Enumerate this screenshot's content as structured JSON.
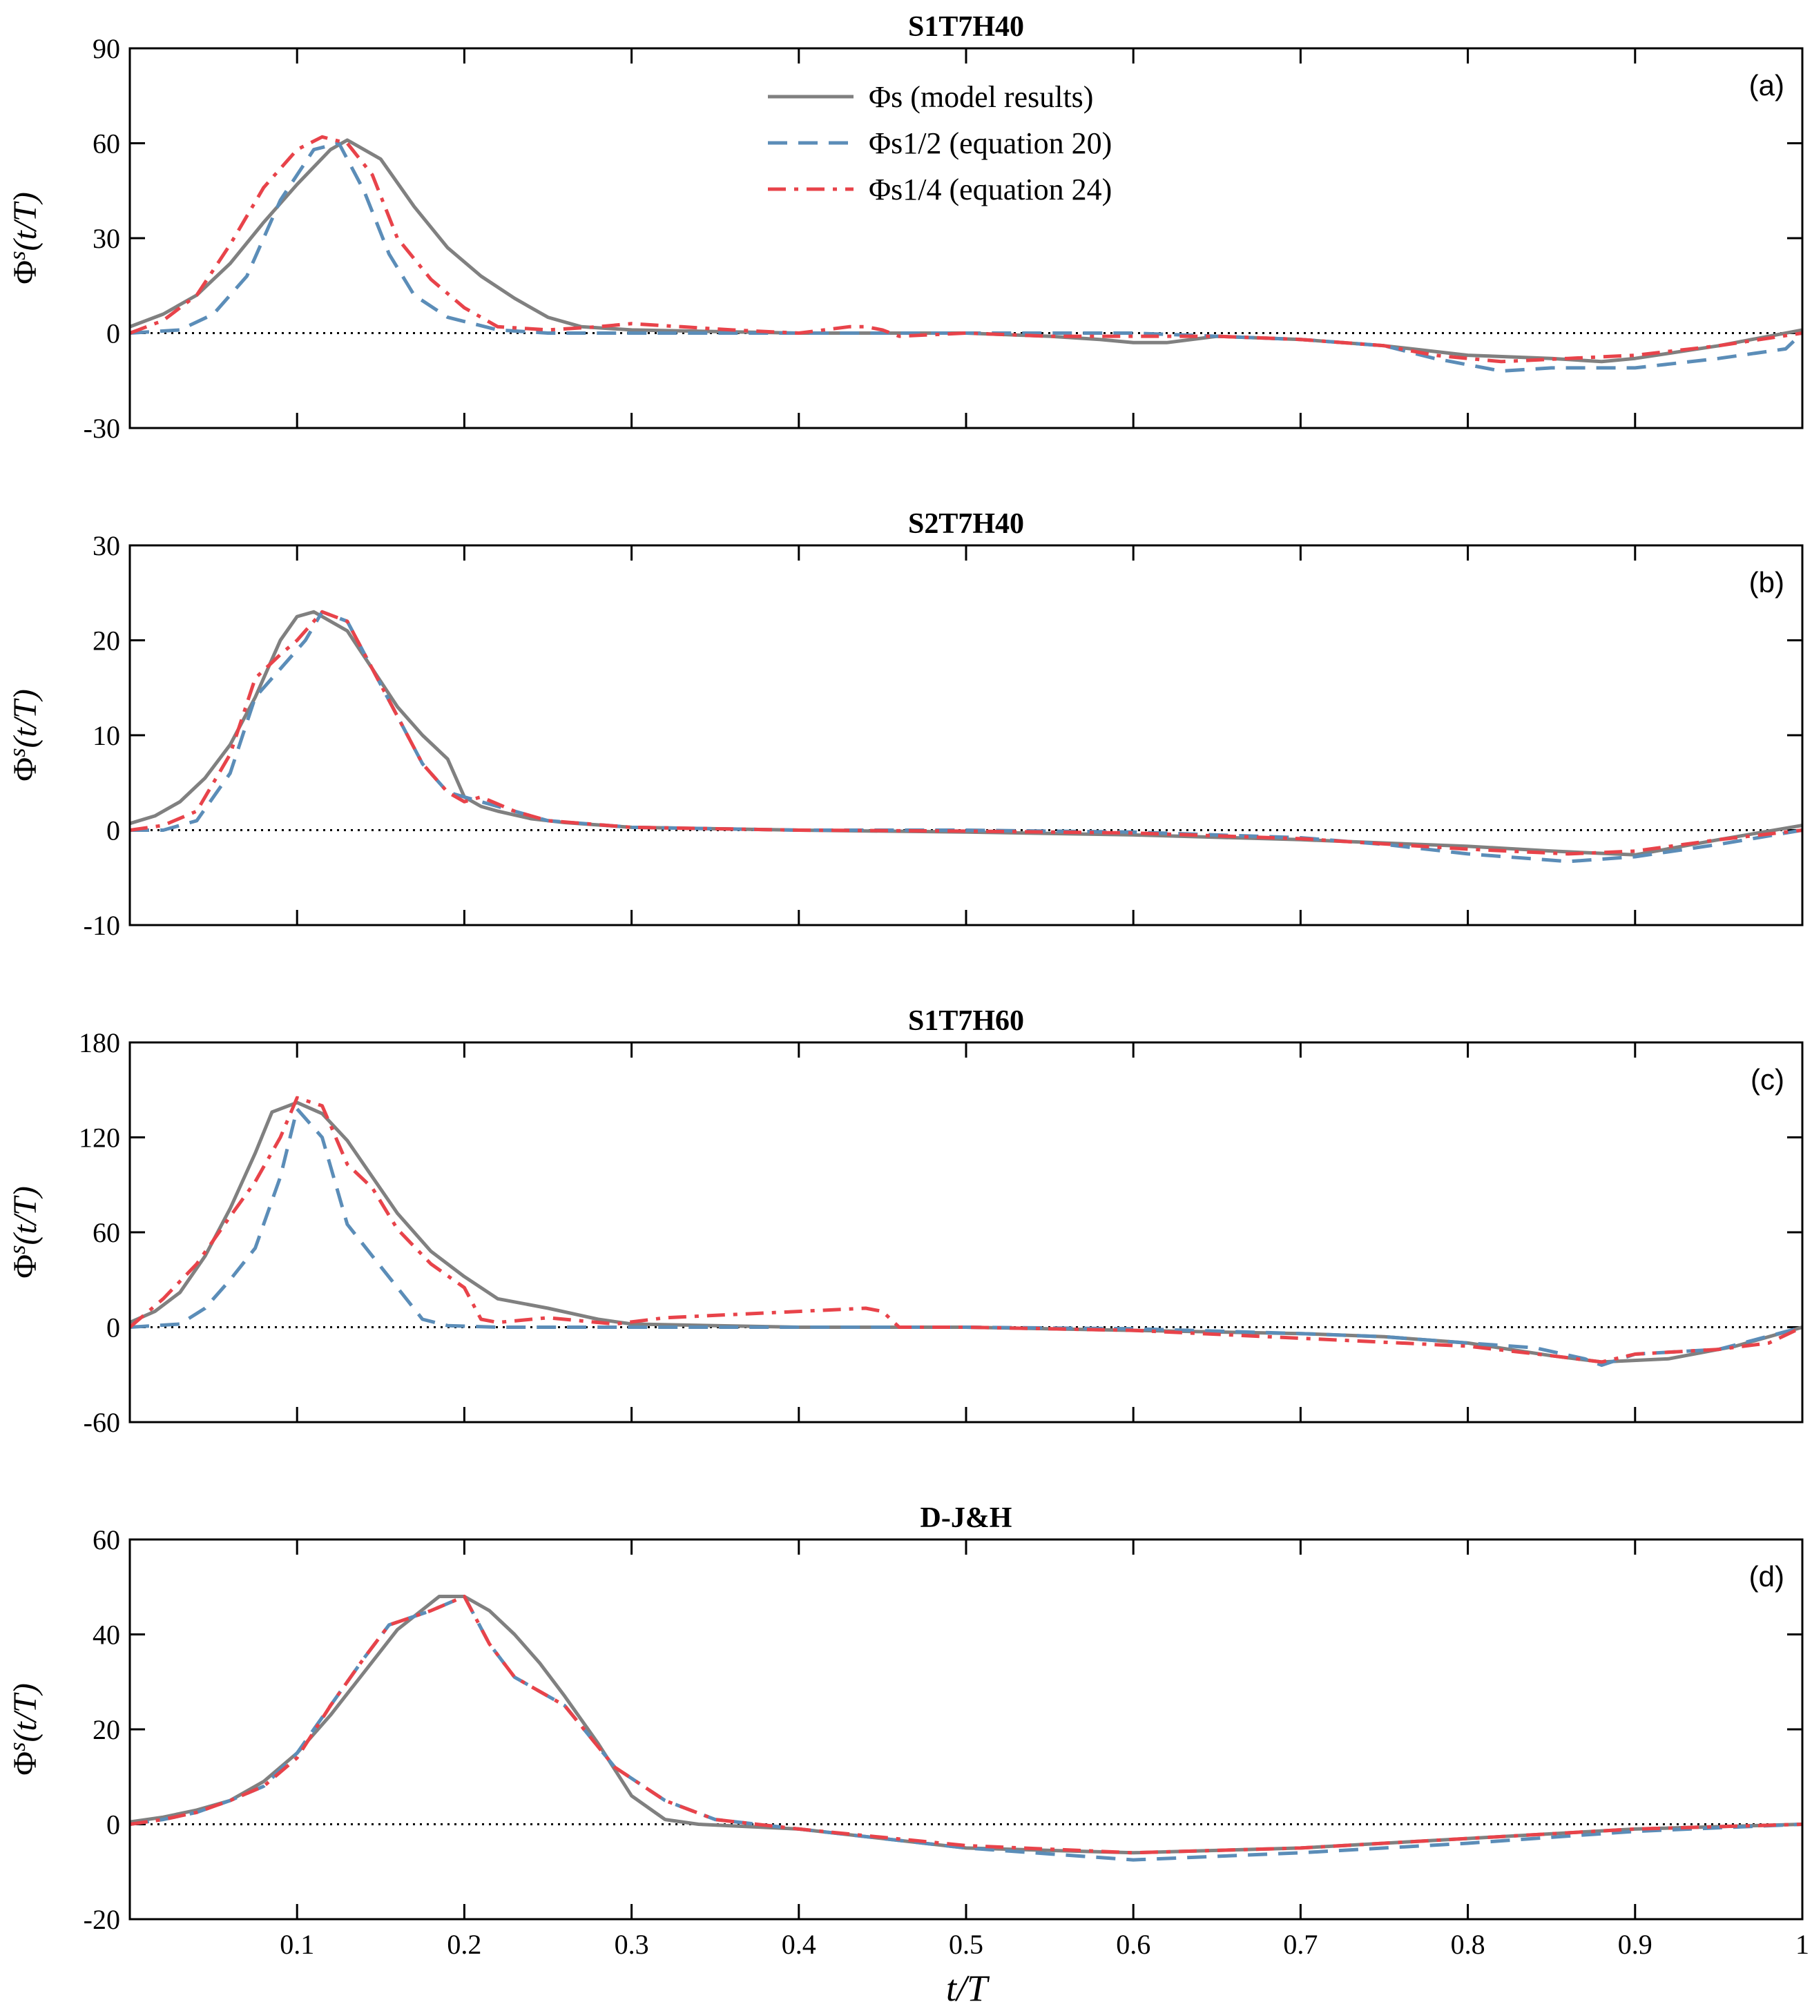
{
  "xlabel": "t/T",
  "legend": {
    "entries": [
      {
        "key": "model",
        "label": "Φs (model results)",
        "color": "#808080",
        "dash": "solid"
      },
      {
        "key": "eq20",
        "label": "Φs1/2 (equation 20)",
        "color": "#5b8db8",
        "dash": "dash"
      },
      {
        "key": "eq24",
        "label": "Φs1/4 (equation 24)",
        "color": "#e8434a",
        "dash": "dashdot"
      }
    ]
  },
  "chart_data": [
    {
      "type": "line",
      "title": "S1T7H40",
      "panel_label": "(a)",
      "xlabel": "",
      "ylabel": "Φs(t/T)",
      "xlim": [
        0,
        1
      ],
      "ylim": [
        -30,
        90
      ],
      "yticks": [
        "90",
        "60",
        "30",
        "0",
        "-30"
      ],
      "ytick_values": [
        90,
        60,
        30,
        0,
        -30
      ],
      "xticks": [
        0.1,
        0.2,
        0.3,
        0.4,
        0.5,
        0.6,
        0.7,
        0.8,
        0.9,
        1
      ],
      "show_xtick_labels": false,
      "series": [
        {
          "name": "Φs (model results)",
          "key": "model",
          "x": [
            0,
            0.02,
            0.04,
            0.06,
            0.08,
            0.1,
            0.12,
            0.13,
            0.15,
            0.17,
            0.19,
            0.21,
            0.23,
            0.25,
            0.27,
            0.3,
            0.35,
            0.4,
            0.5,
            0.55,
            0.58,
            0.6,
            0.62,
            0.65,
            0.7,
            0.75,
            0.8,
            0.85,
            0.88,
            0.9,
            0.95,
            1
          ],
          "values": [
            2,
            6,
            12,
            22,
            35,
            47,
            58,
            61,
            55,
            40,
            27,
            18,
            11,
            5,
            2,
            1,
            0.5,
            0,
            0,
            -1,
            -2,
            -3,
            -3,
            -1,
            -2,
            -4,
            -7,
            -8,
            -9,
            -8,
            -4,
            1
          ]
        },
        {
          "name": "Φs1/2 (equation 20)",
          "key": "eq20",
          "x": [
            0,
            0.03,
            0.05,
            0.07,
            0.09,
            0.11,
            0.125,
            0.14,
            0.155,
            0.17,
            0.19,
            0.22,
            0.25,
            0.3,
            0.35,
            0.4,
            0.45,
            0.5,
            0.6,
            0.65,
            0.7,
            0.75,
            0.78,
            0.82,
            0.85,
            0.9,
            0.95,
            0.99,
            1
          ],
          "values": [
            0,
            1,
            6,
            18,
            42,
            58,
            60,
            45,
            25,
            12,
            5,
            1,
            0,
            0,
            0,
            0,
            0,
            0,
            0,
            -1,
            -2,
            -4,
            -8,
            -12,
            -11,
            -11,
            -8,
            -5,
            0
          ]
        },
        {
          "name": "Φs1/4 (equation 24)",
          "key": "eq24",
          "x": [
            0,
            0.02,
            0.04,
            0.06,
            0.08,
            0.1,
            0.115,
            0.13,
            0.145,
            0.16,
            0.18,
            0.2,
            0.22,
            0.25,
            0.28,
            0.3,
            0.33,
            0.36,
            0.4,
            0.43,
            0.44,
            0.45,
            0.46,
            0.5,
            0.55,
            0.6,
            0.65,
            0.7,
            0.75,
            0.78,
            0.82,
            0.86,
            0.9,
            0.95,
            1
          ],
          "values": [
            0,
            4,
            12,
            28,
            46,
            58,
            62,
            60,
            50,
            30,
            17,
            8,
            2,
            1,
            2,
            3,
            2,
            1,
            0,
            2,
            2,
            1,
            -1,
            0,
            -1,
            -1,
            -1,
            -2,
            -4,
            -7,
            -9,
            -8,
            -7,
            -4,
            0
          ]
        }
      ]
    },
    {
      "type": "line",
      "title": "S2T7H40",
      "panel_label": "(b)",
      "xlabel": "",
      "ylabel": "Φs(t/T)",
      "xlim": [
        0,
        1
      ],
      "ylim": [
        -10,
        30
      ],
      "yticks": [
        "30",
        "20",
        "10",
        "0",
        "-10"
      ],
      "ytick_values": [
        30,
        20,
        10,
        0,
        -10
      ],
      "xticks": [
        0.1,
        0.2,
        0.3,
        0.4,
        0.5,
        0.6,
        0.7,
        0.8,
        0.9,
        1
      ],
      "show_xtick_labels": false,
      "series": [
        {
          "name": "Φs (model results)",
          "key": "model",
          "x": [
            0,
            0.015,
            0.03,
            0.045,
            0.06,
            0.075,
            0.09,
            0.1,
            0.11,
            0.115,
            0.13,
            0.145,
            0.16,
            0.175,
            0.19,
            0.2,
            0.21,
            0.22,
            0.24,
            0.26,
            0.3,
            0.4,
            0.5,
            0.6,
            0.7,
            0.8,
            0.85,
            0.9,
            0.95,
            1
          ],
          "values": [
            0.7,
            1.5,
            3,
            5.5,
            9,
            14,
            20,
            22.5,
            23,
            22.5,
            21,
            17,
            13,
            10,
            7.5,
            3.5,
            2.5,
            2,
            1.2,
            0.8,
            0.3,
            0,
            -0.2,
            -0.5,
            -1,
            -1.7,
            -2.2,
            -2.6,
            -1,
            0.5
          ]
        },
        {
          "name": "Φs1/2 (equation 20)",
          "key": "eq20",
          "x": [
            0,
            0.02,
            0.04,
            0.06,
            0.075,
            0.09,
            0.105,
            0.115,
            0.13,
            0.145,
            0.16,
            0.175,
            0.19,
            0.21,
            0.23,
            0.25,
            0.3,
            0.4,
            0.5,
            0.6,
            0.7,
            0.75,
            0.8,
            0.86,
            0.9,
            0.95,
            1
          ],
          "values": [
            0,
            0,
            1,
            6,
            14,
            17,
            20,
            23,
            22,
            17,
            12,
            7,
            4,
            3,
            2,
            1,
            0.3,
            0,
            0,
            -0.2,
            -0.8,
            -1.5,
            -2.5,
            -3.3,
            -2.8,
            -1.5,
            0
          ]
        },
        {
          "name": "Φs1/4 (equation 24)",
          "key": "eq24",
          "x": [
            0,
            0.02,
            0.04,
            0.06,
            0.075,
            0.09,
            0.1,
            0.115,
            0.13,
            0.145,
            0.16,
            0.175,
            0.19,
            0.2,
            0.21,
            0.23,
            0.25,
            0.3,
            0.4,
            0.5,
            0.6,
            0.7,
            0.8,
            0.86,
            0.9,
            0.95,
            1
          ],
          "values": [
            0,
            0.5,
            2,
            8,
            16,
            18.5,
            20,
            23,
            22,
            17,
            12,
            7,
            4,
            3,
            3.5,
            2,
            1,
            0.3,
            0,
            -0.1,
            -0.3,
            -0.9,
            -2,
            -2.5,
            -2.2,
            -1,
            0
          ]
        }
      ]
    },
    {
      "type": "line",
      "title": "S1T7H60",
      "panel_label": "(c)",
      "xlabel": "",
      "ylabel": "Φs(t/T)",
      "xlim": [
        0,
        1
      ],
      "ylim": [
        -60,
        180
      ],
      "yticks": [
        "180",
        "120",
        "60",
        "0",
        "-60"
      ],
      "ytick_values": [
        180,
        120,
        60,
        0,
        -60
      ],
      "xticks": [
        0.1,
        0.2,
        0.3,
        0.4,
        0.5,
        0.6,
        0.7,
        0.8,
        0.9,
        1
      ],
      "show_xtick_labels": false,
      "series": [
        {
          "name": "Φs (model results)",
          "key": "model",
          "x": [
            0,
            0.015,
            0.03,
            0.045,
            0.06,
            0.075,
            0.085,
            0.1,
            0.115,
            0.13,
            0.145,
            0.16,
            0.18,
            0.2,
            0.22,
            0.25,
            0.28,
            0.3,
            0.4,
            0.5,
            0.6,
            0.7,
            0.75,
            0.8,
            0.85,
            0.88,
            0.92,
            0.96,
            1
          ],
          "values": [
            3,
            10,
            22,
            45,
            75,
            110,
            136,
            142,
            135,
            118,
            95,
            72,
            48,
            32,
            18,
            12,
            5,
            2,
            0,
            0,
            -2,
            -4,
            -6,
            -10,
            -18,
            -22,
            -20,
            -12,
            0
          ]
        },
        {
          "name": "Φs1/2 (equation 20)",
          "key": "eq20",
          "x": [
            0,
            0.03,
            0.045,
            0.06,
            0.075,
            0.09,
            0.1,
            0.115,
            0.13,
            0.145,
            0.16,
            0.175,
            0.19,
            0.22,
            0.3,
            0.4,
            0.5,
            0.6,
            0.7,
            0.75,
            0.8,
            0.84,
            0.87,
            0.88,
            0.9,
            0.95,
            1
          ],
          "values": [
            0,
            2,
            12,
            30,
            50,
            95,
            138,
            120,
            65,
            45,
            25,
            5,
            1,
            0,
            0,
            0,
            0,
            -1,
            -4,
            -6,
            -10,
            -13,
            -20,
            -24,
            -17,
            -14,
            0
          ]
        },
        {
          "name": "Φs1/4 (equation 24)",
          "key": "eq24",
          "x": [
            0,
            0.02,
            0.04,
            0.06,
            0.075,
            0.09,
            0.1,
            0.115,
            0.13,
            0.145,
            0.16,
            0.18,
            0.2,
            0.21,
            0.22,
            0.25,
            0.29,
            0.32,
            0.36,
            0.4,
            0.44,
            0.45,
            0.46,
            0.5,
            0.6,
            0.7,
            0.8,
            0.85,
            0.88,
            0.9,
            0.95,
            0.98,
            1
          ],
          "values": [
            0,
            18,
            40,
            70,
            92,
            120,
            145,
            140,
            103,
            88,
            62,
            40,
            25,
            5,
            3,
            6,
            2,
            6,
            8,
            10,
            12,
            10,
            0,
            0,
            -2,
            -7,
            -12,
            -18,
            -22,
            -17,
            -14,
            -10,
            0
          ]
        }
      ]
    },
    {
      "type": "line",
      "title": "D-J&H",
      "panel_label": "(d)",
      "xlabel": "t/T",
      "ylabel": "Φs(t/T)",
      "xlim": [
        0,
        1
      ],
      "ylim": [
        -20,
        60
      ],
      "yticks": [
        "60",
        "40",
        "20",
        "0",
        "-20"
      ],
      "ytick_values": [
        60,
        40,
        20,
        0,
        -20
      ],
      "xticks": [
        0.1,
        0.2,
        0.3,
        0.4,
        0.5,
        0.6,
        0.7,
        0.8,
        0.9,
        1
      ],
      "xtick_labels": [
        "0.1",
        "0.2",
        "0.3",
        "0.4",
        "0.5",
        "0.6",
        "0.7",
        "0.8",
        "0.9",
        "1"
      ],
      "show_xtick_labels": true,
      "series": [
        {
          "name": "Φs (model results)",
          "key": "model",
          "x": [
            0,
            0.02,
            0.04,
            0.06,
            0.08,
            0.1,
            0.12,
            0.14,
            0.16,
            0.185,
            0.2,
            0.215,
            0.23,
            0.245,
            0.26,
            0.28,
            0.3,
            0.32,
            0.34,
            0.4,
            0.5,
            0.6,
            0.7,
            0.8,
            0.9,
            1
          ],
          "values": [
            0.5,
            1.5,
            3,
            5,
            9,
            15,
            23,
            32,
            41,
            48,
            48,
            45,
            40,
            34,
            27,
            17,
            6,
            1,
            0,
            -1,
            -5,
            -6,
            -5,
            -3,
            -1,
            0
          ]
        },
        {
          "name": "Φs1/2 (equation 20)",
          "key": "eq20",
          "x": [
            0,
            0.02,
            0.04,
            0.06,
            0.08,
            0.1,
            0.12,
            0.14,
            0.155,
            0.18,
            0.2,
            0.215,
            0.23,
            0.26,
            0.29,
            0.32,
            0.35,
            0.4,
            0.5,
            0.6,
            0.7,
            0.8,
            0.9,
            1
          ],
          "values": [
            0,
            1,
            2.5,
            5,
            8,
            15,
            25,
            35,
            42,
            45,
            48,
            38,
            31,
            25,
            12,
            5,
            1,
            -1,
            -5,
            -7.5,
            -6,
            -4,
            -1.5,
            0
          ]
        },
        {
          "name": "Φs1/4 (equation 24)",
          "key": "eq24",
          "x": [
            0,
            0.02,
            0.04,
            0.06,
            0.08,
            0.1,
            0.12,
            0.14,
            0.155,
            0.18,
            0.2,
            0.215,
            0.23,
            0.26,
            0.29,
            0.32,
            0.35,
            0.4,
            0.5,
            0.6,
            0.7,
            0.8,
            0.9,
            1
          ],
          "values": [
            0,
            1,
            2.5,
            5,
            8,
            14,
            25,
            35,
            42,
            45,
            48,
            38,
            31,
            25,
            12,
            5,
            1,
            -1,
            -4.5,
            -6,
            -5,
            -3,
            -1,
            0
          ]
        }
      ]
    }
  ]
}
